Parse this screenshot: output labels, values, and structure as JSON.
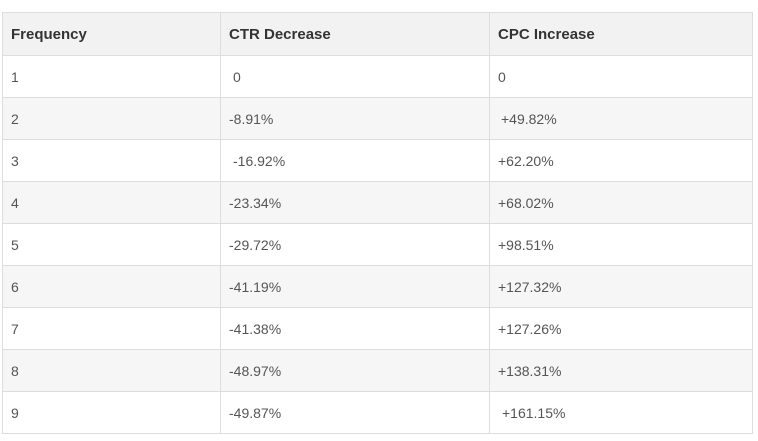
{
  "table": {
    "headers": [
      "Frequency",
      "CTR Decrease",
      "CPC Increase"
    ],
    "rows": [
      [
        "1",
        "0",
        "0"
      ],
      [
        "2",
        "-8.91%",
        "+49.82%"
      ],
      [
        "3",
        "-16.92%",
        "+62.20%"
      ],
      [
        "4",
        "-23.34%",
        "+68.02%"
      ],
      [
        "5",
        "-29.72%",
        "+98.51%"
      ],
      [
        "6",
        "-41.19%",
        "+127.32%"
      ],
      [
        "7",
        "-41.38%",
        "+127.26%"
      ],
      [
        "8",
        "-48.97%",
        "+138.31%"
      ],
      [
        "9",
        "-49.87%",
        "+161.15%"
      ]
    ]
  }
}
